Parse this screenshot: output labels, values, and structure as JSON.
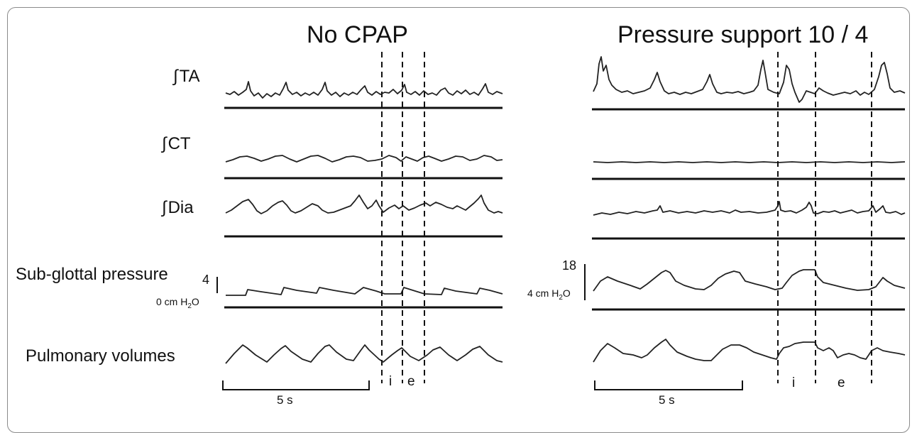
{
  "panels": {
    "left": {
      "title": "No CPAP"
    },
    "right": {
      "title": "Pressure support 10 / 4"
    }
  },
  "rows": {
    "ta": {
      "integral": "∫",
      "label": "TA"
    },
    "ct": {
      "integral": "∫",
      "label": "CT"
    },
    "dia": {
      "integral": "∫",
      "label": "Dia"
    },
    "pressure": {
      "label": "Sub-glottal pressure"
    },
    "volumes": {
      "label": "Pulmonary volumes"
    }
  },
  "pressure_scale": {
    "left": {
      "top": "4",
      "bottom_prefix": "0 cm H",
      "bottom_sub": "2",
      "bottom_suffix": "O"
    },
    "right": {
      "top": "18",
      "bottom_prefix": "4 cm H",
      "bottom_sub": "2",
      "bottom_suffix": "O"
    }
  },
  "phases": {
    "left": {
      "inspiration": "i",
      "expiration": "e"
    },
    "right": {
      "inspiration": "i",
      "expiration": "e"
    }
  },
  "time_scale": {
    "left": "5 s",
    "right": "5 s"
  }
}
